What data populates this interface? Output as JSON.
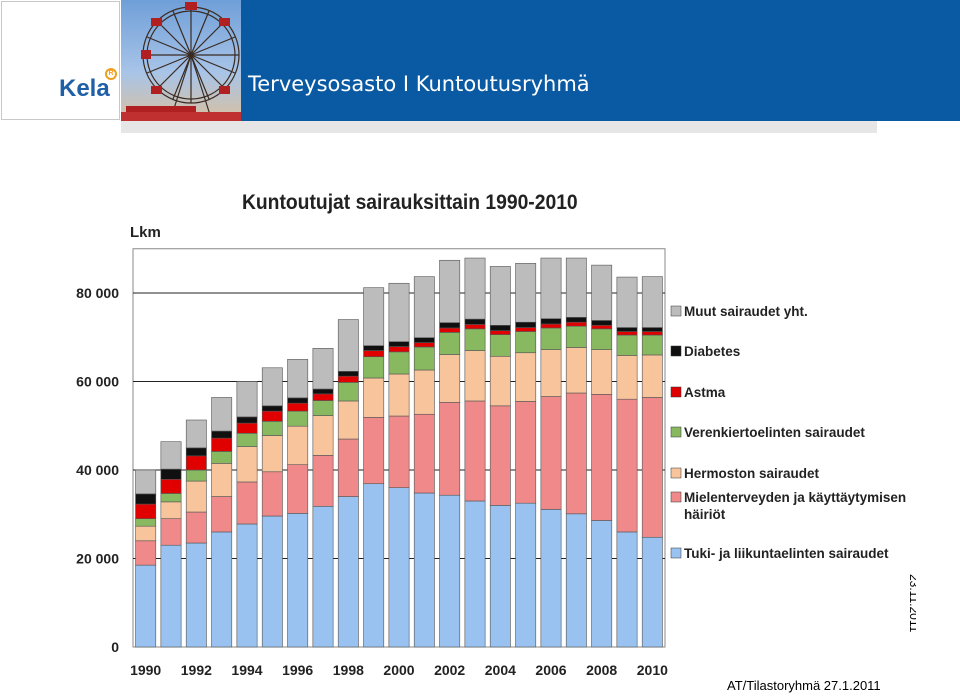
{
  "header": {
    "logo_text": "Kela",
    "title": "Terveysosasto I Kuntoutusryhmä"
  },
  "side_date": "23.11.2011",
  "footer": "AT/Tilastoryhmä 27.1.2011",
  "chart_data": {
    "type": "bar",
    "stacked": true,
    "title": "Kuntoutujat sairauksittain 1990-2010",
    "ylabel": "Lkm",
    "xlabel": "",
    "ylim": [
      0,
      90000
    ],
    "yticks": [
      0,
      20000,
      40000,
      60000,
      80000
    ],
    "ytick_labels": [
      "0",
      "20 000",
      "40 000",
      "60 000",
      "80 000"
    ],
    "grid": true,
    "legend_position": "right",
    "categories": [
      "1990",
      "1991",
      "1992",
      "1993",
      "1994",
      "1995",
      "1996",
      "1997",
      "1998",
      "1999",
      "2000",
      "2001",
      "2002",
      "2003",
      "2004",
      "2005",
      "2006",
      "2007",
      "2008",
      "2009",
      "2010"
    ],
    "xtick_labels": [
      "1990",
      "",
      "1992",
      "",
      "1994",
      "",
      "1996",
      "",
      "1998",
      "",
      "2000",
      "",
      "2002",
      "",
      "2004",
      "",
      "2006",
      "",
      "2008",
      "",
      "2010"
    ],
    "series": [
      {
        "name": "Tuki- ja liikuntaelinten sairaudet",
        "color": "#99c2f0",
        "values": [
          18500,
          23000,
          23500,
          26000,
          27800,
          29600,
          30200,
          31800,
          34000,
          36900,
          36000,
          34800,
          34300,
          33000,
          32000,
          32500,
          31100,
          30100,
          28600,
          26000,
          24800
        ]
      },
      {
        "name": "Mielenterveyden ja käyttäytymisen häiriöt",
        "color": "#f08a8a",
        "values": [
          5500,
          6000,
          7000,
          8000,
          9500,
          10000,
          11000,
          11500,
          13000,
          15000,
          16200,
          17800,
          21000,
          22600,
          22500,
          23000,
          25500,
          27300,
          28500,
          30000,
          31600
        ]
      },
      {
        "name": "Hermoston sairaudet",
        "color": "#f7c49c",
        "values": [
          3300,
          3800,
          7000,
          7500,
          8000,
          8200,
          8700,
          9000,
          8600,
          8900,
          9500,
          10000,
          10800,
          11400,
          11200,
          11000,
          10600,
          10300,
          10100,
          9900,
          9600
        ]
      },
      {
        "name": "Verenkiertoelinten sairaudet",
        "color": "#88b860",
        "values": [
          1700,
          1900,
          2500,
          2700,
          3000,
          3200,
          3400,
          3400,
          4200,
          4800,
          5000,
          5200,
          5000,
          4900,
          4900,
          4800,
          4900,
          4800,
          4700,
          4600,
          4500
        ]
      },
      {
        "name": "Astma",
        "color": "#e00000",
        "values": [
          3300,
          3200,
          3200,
          3000,
          2300,
          2300,
          1800,
          1500,
          1400,
          1400,
          1200,
          1000,
          1000,
          1000,
          900,
          900,
          900,
          900,
          800,
          800,
          800
        ]
      },
      {
        "name": "Diabetes",
        "color": "#101010",
        "values": [
          2300,
          2300,
          1800,
          1600,
          1400,
          1200,
          1200,
          1100,
          1100,
          1100,
          1100,
          1100,
          1200,
          1200,
          1200,
          1200,
          1200,
          1100,
          1100,
          900,
          900
        ]
      },
      {
        "name": "Muut sairaudet yht.",
        "color": "#bcbcbc",
        "values": [
          5400,
          6200,
          6300,
          7600,
          8000,
          8600,
          8700,
          9200,
          11700,
          13100,
          13200,
          13800,
          14100,
          13800,
          13300,
          13300,
          13700,
          13400,
          12500,
          11400,
          11500
        ]
      }
    ]
  }
}
